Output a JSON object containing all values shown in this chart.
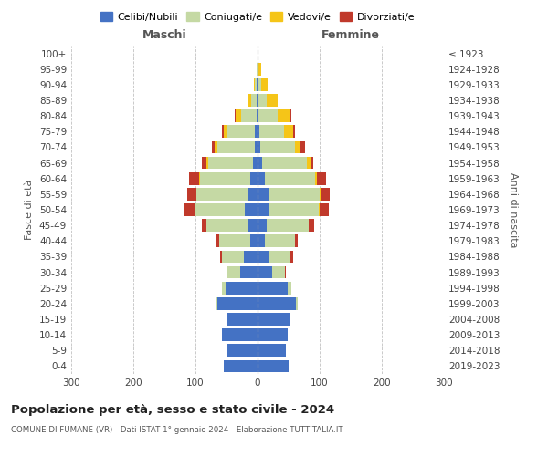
{
  "age_groups": [
    "0-4",
    "5-9",
    "10-14",
    "15-19",
    "20-24",
    "25-29",
    "30-34",
    "35-39",
    "40-44",
    "45-49",
    "50-54",
    "55-59",
    "60-64",
    "65-69",
    "70-74",
    "75-79",
    "80-84",
    "85-89",
    "90-94",
    "95-99",
    "100+"
  ],
  "birth_years": [
    "2019-2023",
    "2014-2018",
    "2009-2013",
    "2004-2008",
    "1999-2003",
    "1994-1998",
    "1989-1993",
    "1984-1988",
    "1979-1983",
    "1974-1978",
    "1969-1973",
    "1964-1968",
    "1959-1963",
    "1954-1958",
    "1949-1953",
    "1944-1948",
    "1939-1943",
    "1934-1938",
    "1929-1933",
    "1924-1928",
    "≤ 1923"
  ],
  "males": {
    "celibe": [
      55,
      50,
      58,
      50,
      65,
      52,
      28,
      22,
      12,
      14,
      20,
      16,
      12,
      8,
      5,
      4,
      2,
      1,
      1,
      0,
      0
    ],
    "coniugato": [
      0,
      0,
      0,
      0,
      2,
      5,
      20,
      36,
      50,
      68,
      80,
      82,
      80,
      72,
      60,
      45,
      25,
      10,
      3,
      1,
      0
    ],
    "vedovo": [
      0,
      0,
      0,
      0,
      0,
      0,
      0,
      0,
      0,
      0,
      1,
      1,
      2,
      2,
      4,
      6,
      8,
      5,
      2,
      0,
      0
    ],
    "divorziato": [
      0,
      0,
      0,
      0,
      0,
      1,
      2,
      3,
      5,
      8,
      18,
      14,
      16,
      8,
      5,
      2,
      2,
      0,
      0,
      0,
      0
    ]
  },
  "females": {
    "nubile": [
      50,
      46,
      48,
      53,
      62,
      48,
      24,
      18,
      12,
      14,
      18,
      18,
      12,
      8,
      5,
      3,
      2,
      1,
      1,
      1,
      0
    ],
    "coniugata": [
      0,
      0,
      0,
      0,
      2,
      6,
      20,
      35,
      48,
      68,
      80,
      82,
      80,
      72,
      55,
      40,
      30,
      14,
      5,
      1,
      0
    ],
    "vedova": [
      0,
      0,
      0,
      0,
      0,
      0,
      0,
      0,
      0,
      1,
      2,
      2,
      4,
      5,
      8,
      14,
      20,
      18,
      10,
      4,
      2
    ],
    "divorziata": [
      0,
      0,
      0,
      0,
      0,
      1,
      2,
      5,
      5,
      8,
      15,
      14,
      14,
      5,
      8,
      3,
      2,
      0,
      0,
      0,
      0
    ]
  },
  "colors": {
    "celibe_nubile": "#4472C4",
    "coniugato_a": "#C5D9A4",
    "vedovo_a": "#F5C518",
    "divorziato_a": "#C0392B"
  },
  "title": "Popolazione per età, sesso e stato civile - 2024",
  "subtitle": "COMUNE DI FUMANE (VR) - Dati ISTAT 1° gennaio 2024 - Elaborazione TUTTITALIA.IT",
  "xlabel_left": "Maschi",
  "xlabel_right": "Femmine",
  "ylabel_left": "Fasce di età",
  "ylabel_right": "Anni di nascita",
  "xlim": 300,
  "legend_labels": [
    "Celibi/Nubili",
    "Coniugati/e",
    "Vedovi/e",
    "Divorziati/e"
  ],
  "background_color": "#ffffff",
  "grid_color": "#cccccc"
}
